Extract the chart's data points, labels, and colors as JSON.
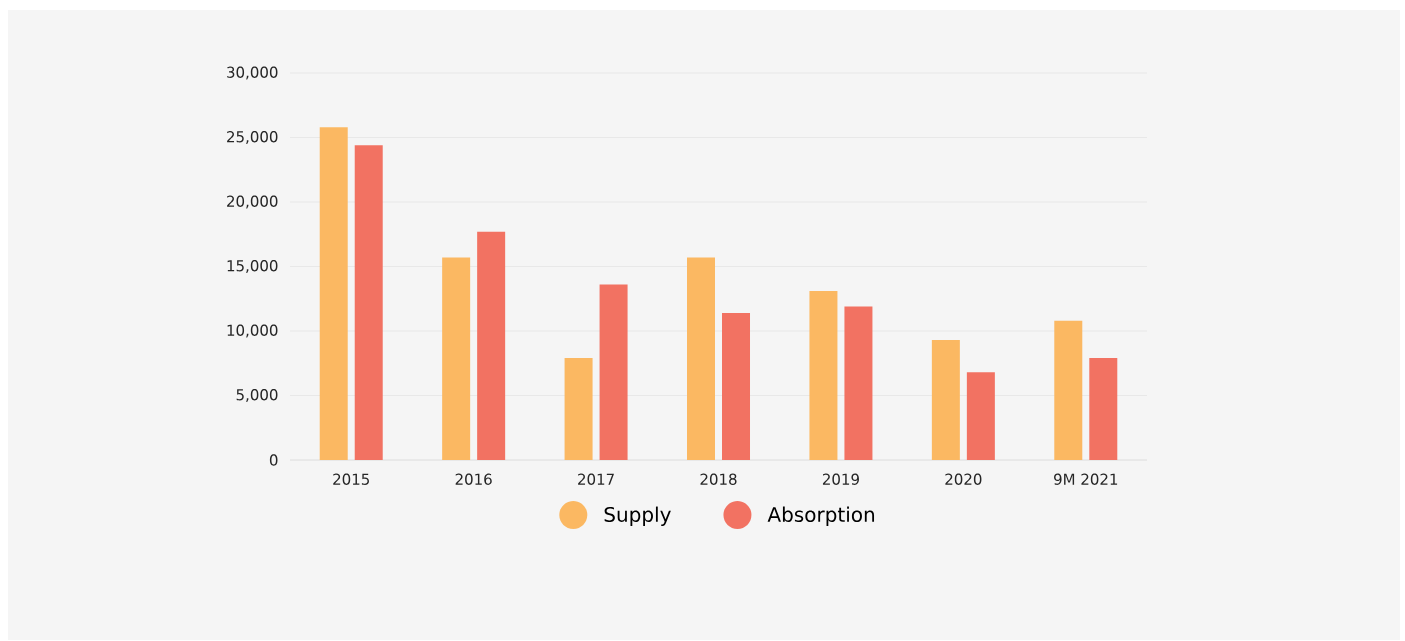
{
  "chart_data": {
    "type": "bar",
    "categories": [
      "2015",
      "2016",
      "2017",
      "2018",
      "2019",
      "2020",
      "9M 2021"
    ],
    "series": [
      {
        "name": "Supply",
        "color": "#fbb862",
        "values": [
          25800,
          15700,
          7900,
          15700,
          13100,
          9300,
          10800
        ]
      },
      {
        "name": "Absorption",
        "color": "#f27262",
        "values": [
          24400,
          17700,
          13600,
          11400,
          11900,
          6800,
          7900
        ]
      }
    ],
    "ylim": [
      0,
      30000
    ],
    "yticks": [
      0,
      {
        "value": 5000,
        "label": "5,000"
      },
      {
        "value": 10000,
        "label": "10,000"
      },
      {
        "value": 15000,
        "label": "15,000"
      },
      {
        "value": 20000,
        "label": "20,000"
      },
      {
        "value": 25000,
        "label": "25,000"
      },
      {
        "value": 30000,
        "label": "30,000"
      }
    ],
    "grid": "y",
    "legend": "bottom"
  }
}
